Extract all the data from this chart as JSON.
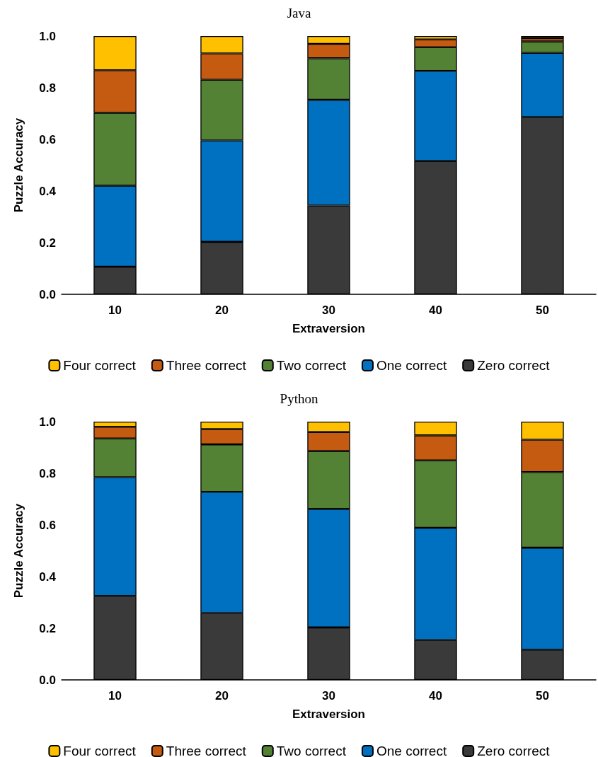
{
  "chart_data": [
    {
      "type": "bar",
      "title": "Java",
      "xlabel": "Extraversion",
      "ylabel": "Puzzle Accuracy",
      "categories": [
        "10",
        "20",
        "30",
        "40",
        "50"
      ],
      "stacked": true,
      "legend": "bottom",
      "grid": false,
      "ylim": [
        0,
        1
      ],
      "yticks": [
        {
          "value": 0,
          "label": "0.0"
        },
        {
          "value": 0.2,
          "label": "0.2"
        },
        {
          "value": 0.4,
          "label": "0.4"
        },
        {
          "value": 0.6,
          "label": "0.6"
        },
        {
          "value": 0.8,
          "label": "0.8"
        },
        {
          "value": 1,
          "label": "1.0"
        }
      ],
      "series": [
        {
          "name": "Zero correct",
          "color": "#3a3a3a",
          "values": [
            0.107,
            0.203,
            0.344,
            0.516,
            0.686
          ]
        },
        {
          "name": "One correct",
          "color": "#0070c0",
          "values": [
            0.314,
            0.393,
            0.409,
            0.349,
            0.249
          ]
        },
        {
          "name": "Two correct",
          "color": "#548235",
          "values": [
            0.282,
            0.235,
            0.161,
            0.092,
            0.044
          ]
        },
        {
          "name": "Three correct",
          "color": "#c55a11",
          "values": [
            0.165,
            0.102,
            0.056,
            0.03,
            0.013
          ]
        },
        {
          "name": "Four correct",
          "color": "#ffc000",
          "values": [
            0.132,
            0.067,
            0.03,
            0.013,
            0.008
          ]
        }
      ]
    },
    {
      "type": "bar",
      "title": "Python",
      "xlabel": "Extraversion",
      "ylabel": "Puzzle Accuracy",
      "categories": [
        "10",
        "20",
        "30",
        "40",
        "50"
      ],
      "stacked": true,
      "legend": "bottom",
      "grid": false,
      "ylim": [
        0,
        1
      ],
      "yticks": [
        {
          "value": 0,
          "label": "0.0"
        },
        {
          "value": 0.2,
          "label": "0.2"
        },
        {
          "value": 0.4,
          "label": "0.4"
        },
        {
          "value": 0.6,
          "label": "0.6"
        },
        {
          "value": 0.8,
          "label": "0.8"
        },
        {
          "value": 1,
          "label": "1.0"
        }
      ],
      "series": [
        {
          "name": "Zero correct",
          "color": "#3a3a3a",
          "values": [
            0.325,
            0.259,
            0.203,
            0.155,
            0.117
          ]
        },
        {
          "name": "One correct",
          "color": "#0070c0",
          "values": [
            0.46,
            0.469,
            0.459,
            0.434,
            0.395
          ]
        },
        {
          "name": "Two correct",
          "color": "#548235",
          "values": [
            0.15,
            0.184,
            0.224,
            0.261,
            0.293
          ]
        },
        {
          "name": "Three correct",
          "color": "#c55a11",
          "values": [
            0.045,
            0.059,
            0.074,
            0.097,
            0.125
          ]
        },
        {
          "name": "Four correct",
          "color": "#ffc000",
          "values": [
            0.02,
            0.029,
            0.04,
            0.053,
            0.07
          ]
        }
      ]
    }
  ]
}
